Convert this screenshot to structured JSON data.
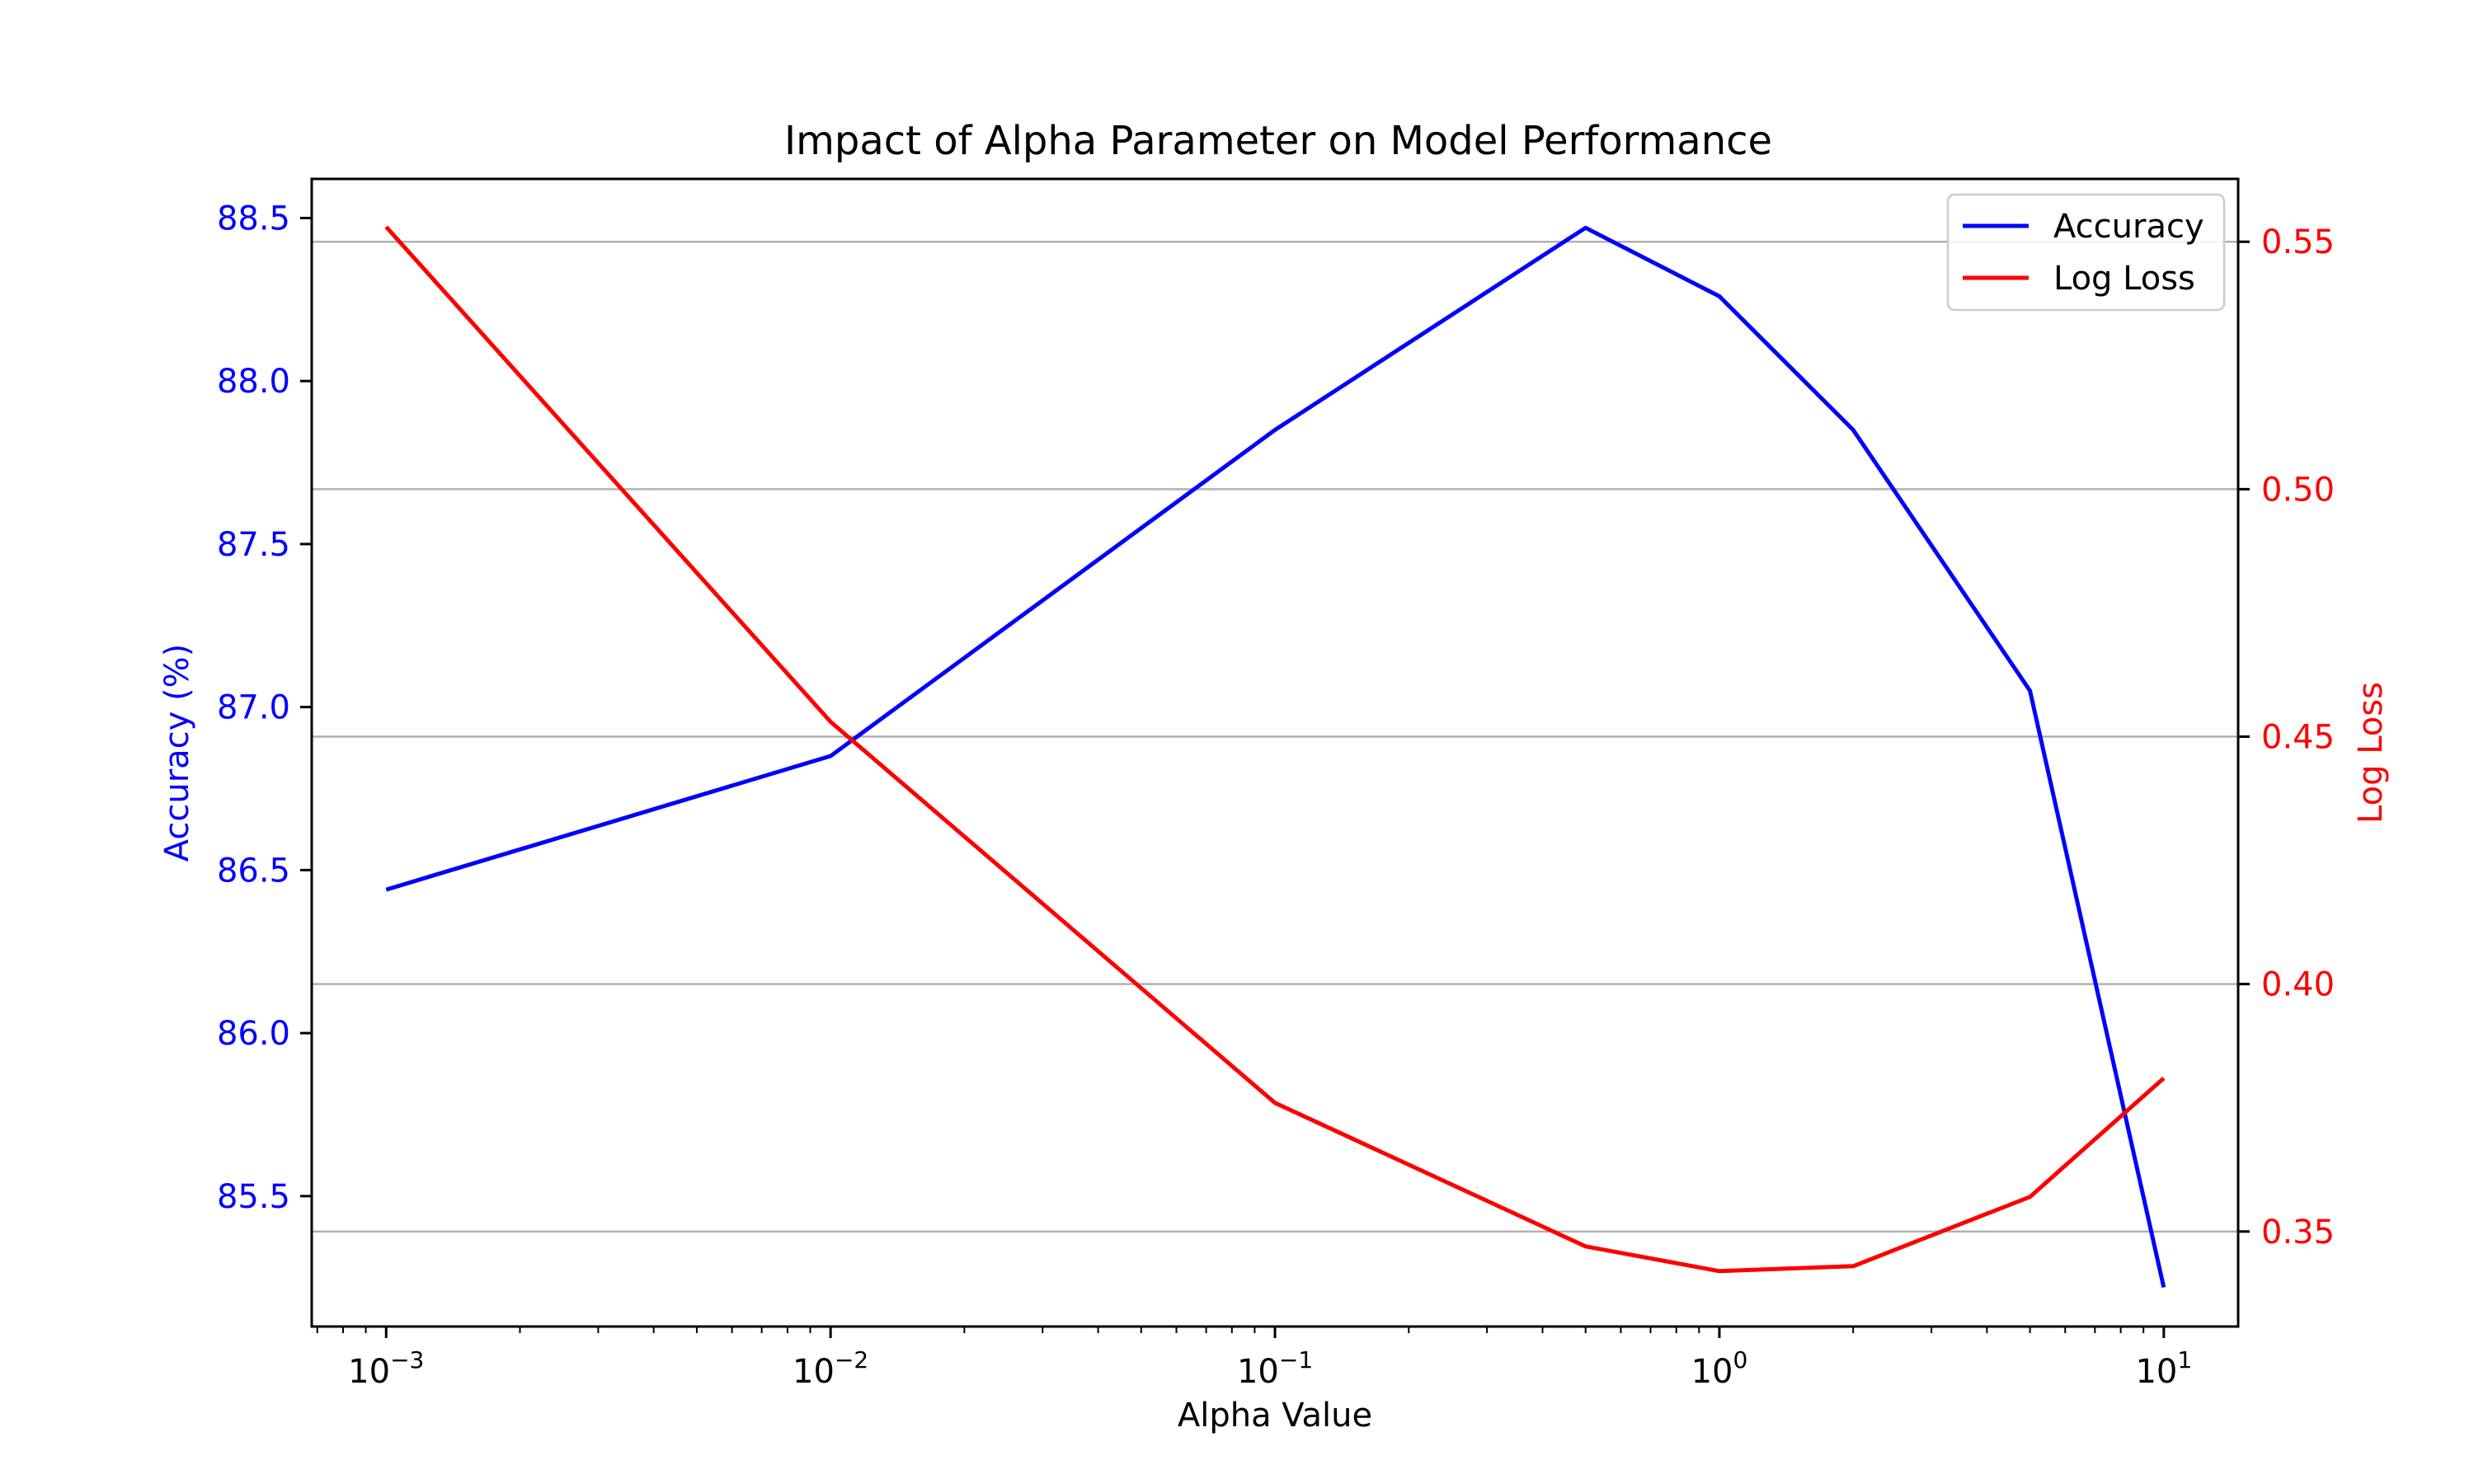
{
  "chart_data": {
    "type": "line",
    "title": "Impact of Alpha Parameter on Model Performance",
    "xlabel": "Alpha Value",
    "x_scale": "log",
    "xlim": [
      0.00068,
      14.7
    ],
    "x_ticks": [
      {
        "value": 0.001,
        "base": "10",
        "exp": "−3"
      },
      {
        "value": 0.01,
        "base": "10",
        "exp": "−2"
      },
      {
        "value": 0.1,
        "base": "10",
        "exp": "−1"
      },
      {
        "value": 1,
        "base": "10",
        "exp": "0"
      },
      {
        "value": 10,
        "base": "10",
        "exp": "1"
      }
    ],
    "x": [
      0.001,
      0.01,
      0.1,
      0.5,
      1,
      2,
      5,
      10
    ],
    "y_left": {
      "label": "Accuracy (%)",
      "color": "#0000ff",
      "lim": [
        85.1,
        88.62
      ],
      "ticks": [
        "85.5",
        "86.0",
        "86.5",
        "87.0",
        "87.5",
        "88.0",
        "88.5"
      ]
    },
    "y_right": {
      "label": "Log Loss",
      "color": "#ff0000",
      "lim": [
        0.3308,
        0.5627
      ],
      "ticks": [
        "0.35",
        "0.40",
        "0.45",
        "0.50",
        "0.55"
      ]
    },
    "grid": "right-axis horizontal",
    "legend_position": "top-right",
    "series": [
      {
        "name": "Accuracy",
        "axis": "left",
        "color": "#0000ff",
        "values": [
          86.44,
          86.85,
          87.85,
          88.47,
          88.26,
          87.85,
          87.05,
          85.22
        ]
      },
      {
        "name": "Log Loss",
        "axis": "right",
        "color": "#ff0000",
        "values": [
          0.553,
          0.453,
          0.376,
          0.347,
          0.342,
          0.343,
          0.357,
          0.381
        ]
      }
    ]
  }
}
